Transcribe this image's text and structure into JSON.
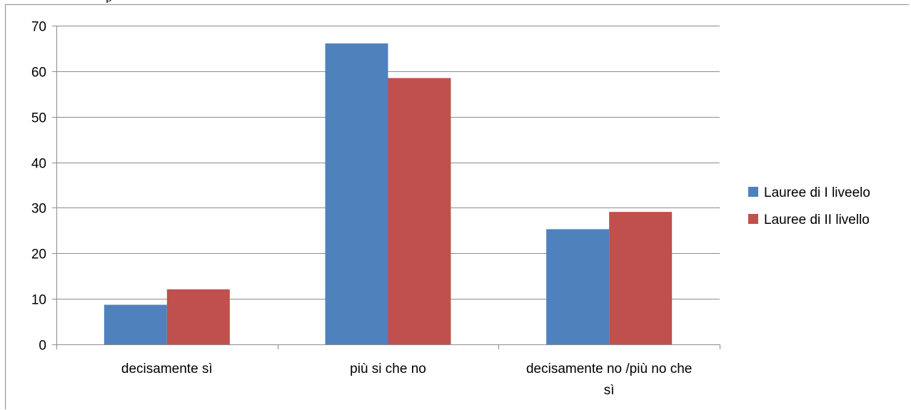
{
  "header_fragment": "p",
  "chart_data": {
    "type": "bar",
    "title": "",
    "xlabel": "",
    "ylabel": "",
    "categories": [
      [
        "decisamente sì"
      ],
      [
        "più si che no"
      ],
      [
        "decisamente no /più no che",
        "sì"
      ]
    ],
    "ylim": [
      0,
      70
    ],
    "yticks": [
      "0",
      "10",
      "20",
      "30",
      "40",
      "50",
      "60",
      "70"
    ],
    "grid": true,
    "legend_position": "right",
    "series": [
      {
        "name": "Lauree di I liveelo",
        "color": "#4f81bd",
        "values": [
          8.7,
          66.1,
          25.3
        ]
      },
      {
        "name": "Lauree di II livello",
        "color": "#c0504d",
        "values": [
          12.1,
          58.5,
          29.1
        ]
      }
    ]
  }
}
